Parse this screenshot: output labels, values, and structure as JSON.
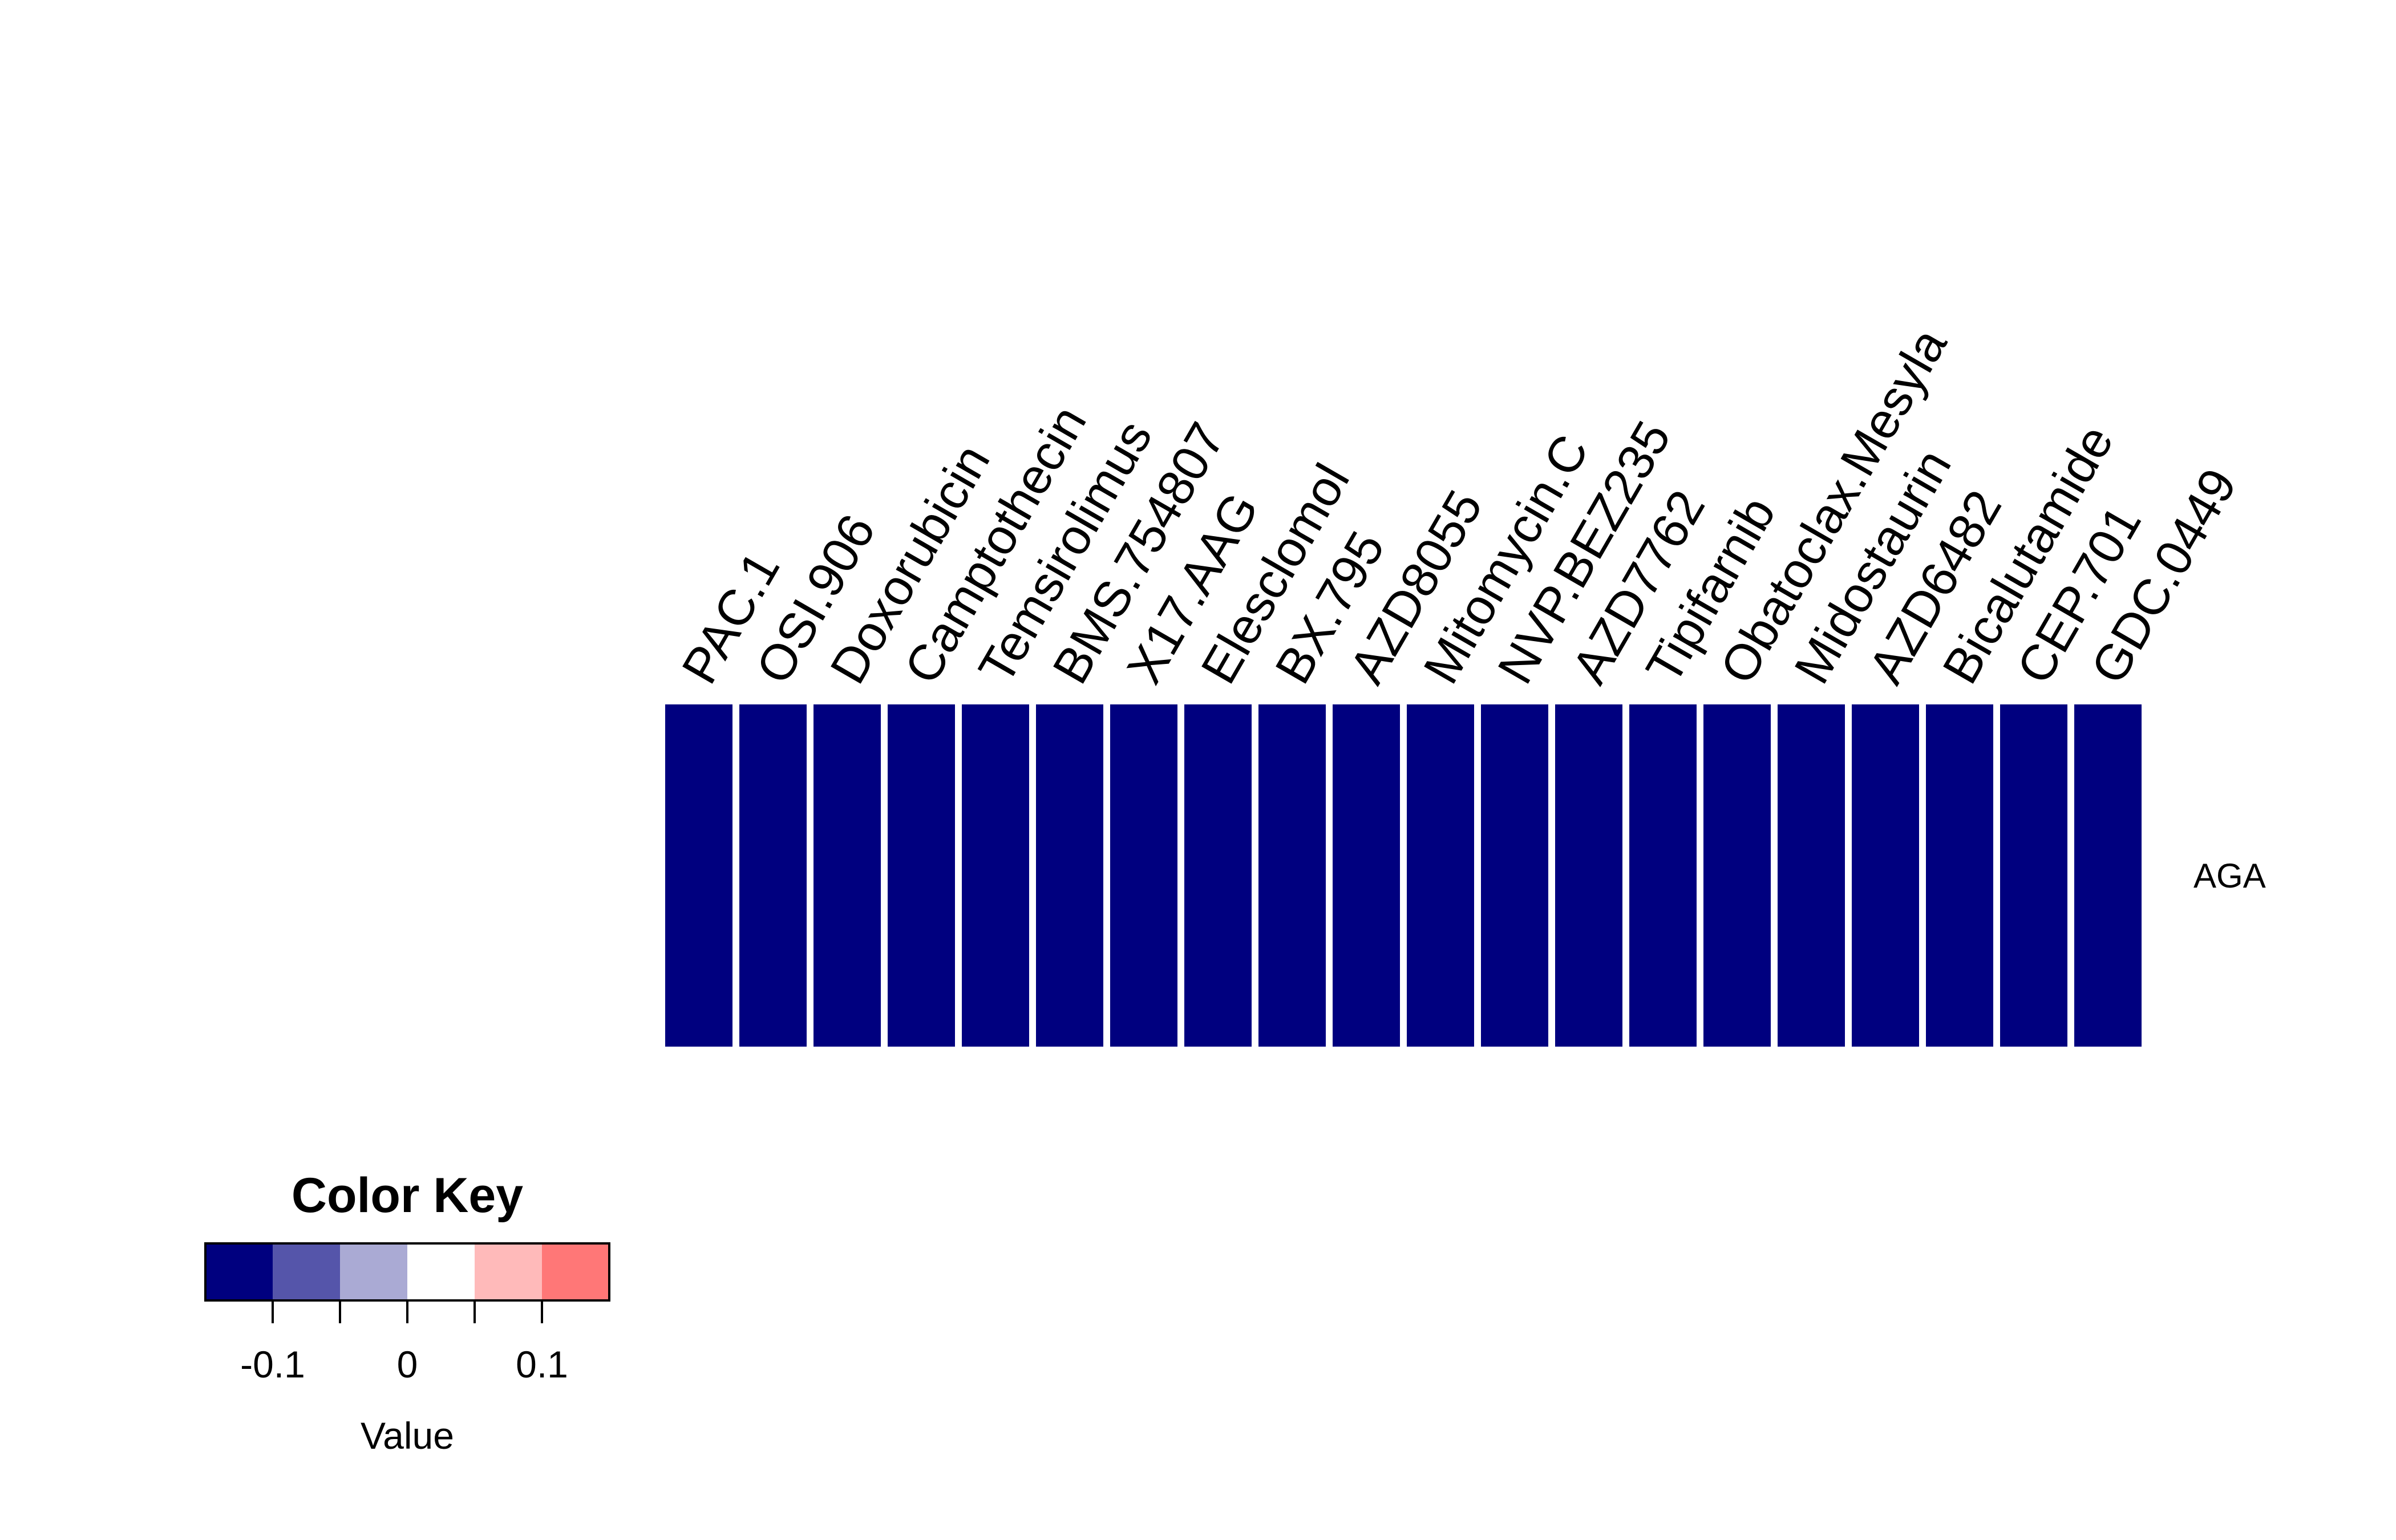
{
  "chart_data": {
    "type": "heatmap",
    "columns": [
      "PAC.1",
      "OSI.906",
      "Doxorubicin",
      "Camptothecin",
      "Temsirolimus",
      "BMS.754807",
      "X17.AAG",
      "Elesclomol",
      "BX.795",
      "AZD8055",
      "Mitomycin.C",
      "NVP.BEZ235",
      "AZD7762",
      "Tipifarnib",
      "Obatoclax.Mesyla",
      "Midostaurin",
      "AZD6482",
      "Bicalutamide",
      "CEP.701",
      "GDC.0449"
    ],
    "rows": [
      "AGA"
    ],
    "values": [
      [
        -0.1,
        -0.1,
        -0.1,
        -0.1,
        -0.1,
        -0.1,
        -0.1,
        -0.1,
        -0.1,
        -0.1,
        -0.1,
        -0.1,
        -0.1,
        -0.1,
        -0.1,
        -0.1,
        -0.1,
        -0.15,
        -0.15,
        -0.15
      ]
    ],
    "color_key": {
      "title": "Color Key",
      "xlabel": "Value",
      "range": [
        -0.15,
        0.15
      ],
      "breaks": [
        -0.15,
        -0.1,
        -0.05,
        0,
        0.05,
        0.1,
        0.15
      ],
      "colors": [
        "#00007F",
        "#5555AA",
        "#AAAAD4",
        "#FFFFFF",
        "#FFBABA",
        "#FF7777",
        "#FF3333"
      ],
      "ticks": [
        -0.1,
        -0.05,
        0,
        0.05,
        0.1
      ],
      "tick_labels": [
        "-0.1",
        "",
        "0",
        "",
        "0.1"
      ]
    }
  }
}
